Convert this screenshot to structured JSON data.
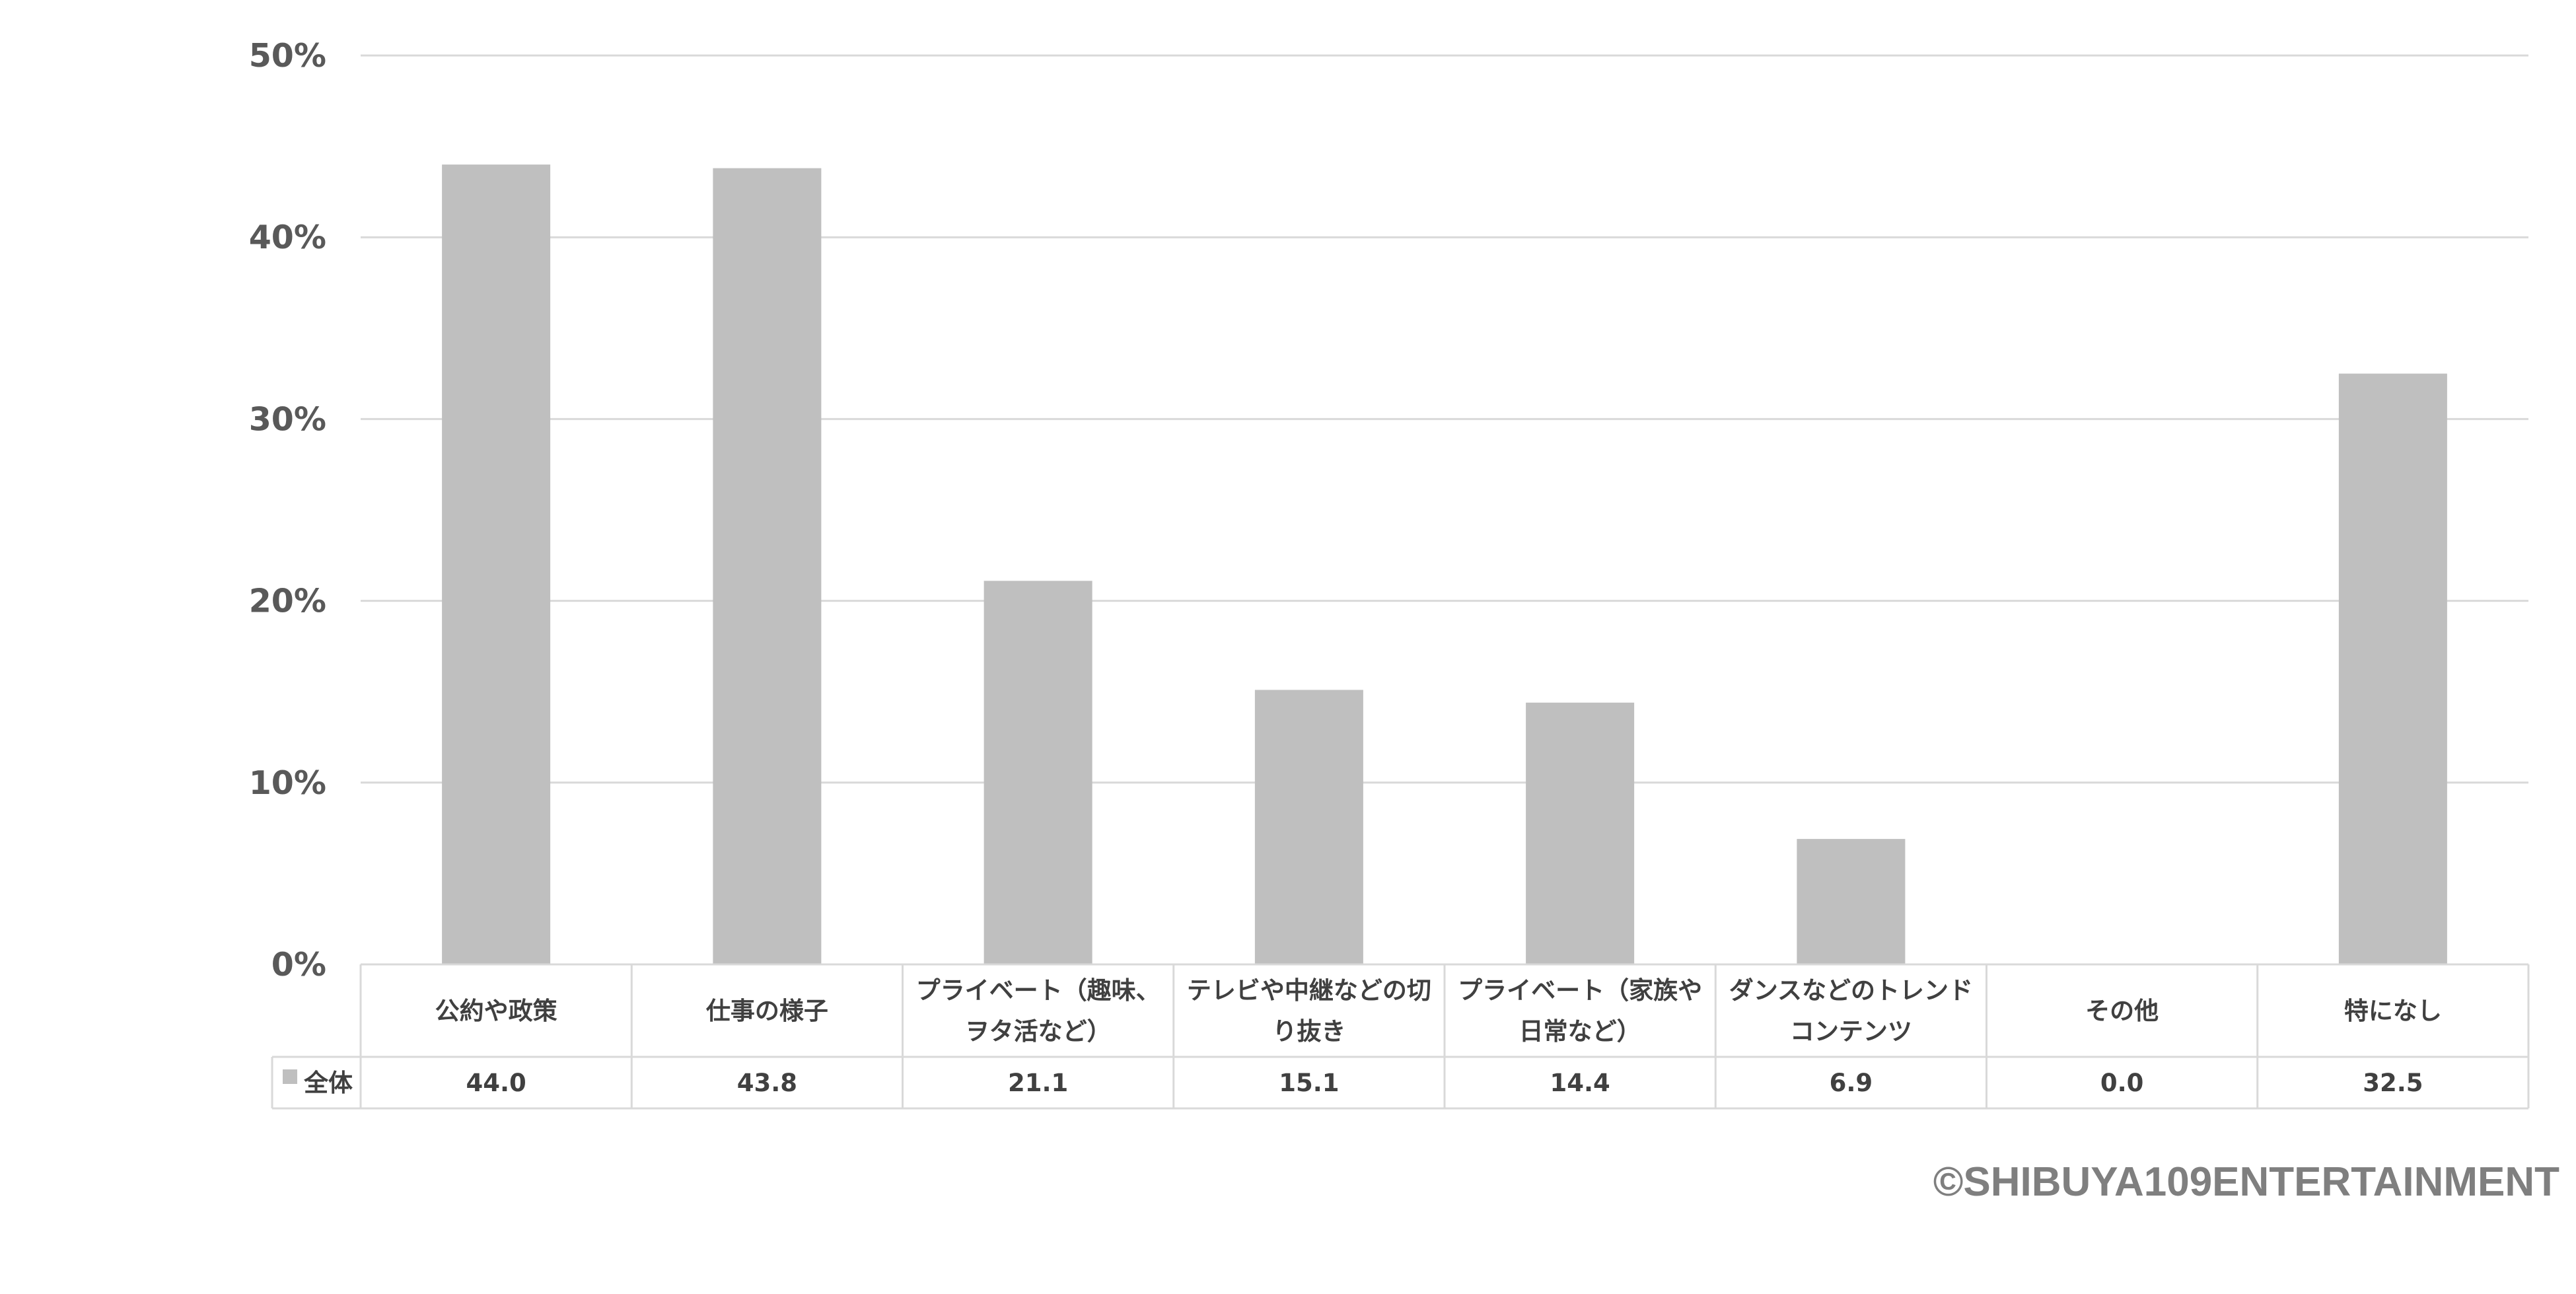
{
  "chart_data": {
    "type": "bar",
    "categories": [
      [
        "公約や政策"
      ],
      [
        "仕事の様子"
      ],
      [
        "プライベート（趣味、",
        "ヲタ活など）"
      ],
      [
        "テレビや中継などの切",
        "り抜き"
      ],
      [
        "プライベート（家族や",
        "日常など）"
      ],
      [
        "ダンスなどのトレンド",
        "コンテンツ"
      ],
      [
        "その他"
      ],
      [
        "特になし"
      ]
    ],
    "series": [
      {
        "name": "全体",
        "color": "#bfbfbf",
        "values": [
          44.0,
          43.8,
          21.1,
          15.1,
          14.4,
          6.9,
          0.0,
          32.5
        ],
        "value_labels": [
          "44.0",
          "43.8",
          "21.1",
          "15.1",
          "14.4",
          "6.9",
          "0.0",
          "32.5"
        ]
      }
    ],
    "ylim": [
      0,
      50
    ],
    "yticks": [
      {
        "value": 0,
        "label": "0%"
      },
      {
        "value": 10,
        "label": "10%"
      },
      {
        "value": 20,
        "label": "20%"
      },
      {
        "value": 30,
        "label": "30%"
      },
      {
        "value": 40,
        "label": "40%"
      },
      {
        "value": 50,
        "label": "50%"
      }
    ],
    "grid": true,
    "legend": "data-table",
    "title": "",
    "xlabel": "",
    "ylabel": ""
  },
  "footer": {
    "copyright": "©SHIBUYA109ENTERTAINMENT"
  },
  "colors": {
    "bar": "#bfbfbf",
    "grid": "#d9d9d9",
    "table_border": "#d9d9d9",
    "tick_text": "#595959",
    "label_text": "#404040",
    "copyright_text": "#7f7f7f"
  }
}
